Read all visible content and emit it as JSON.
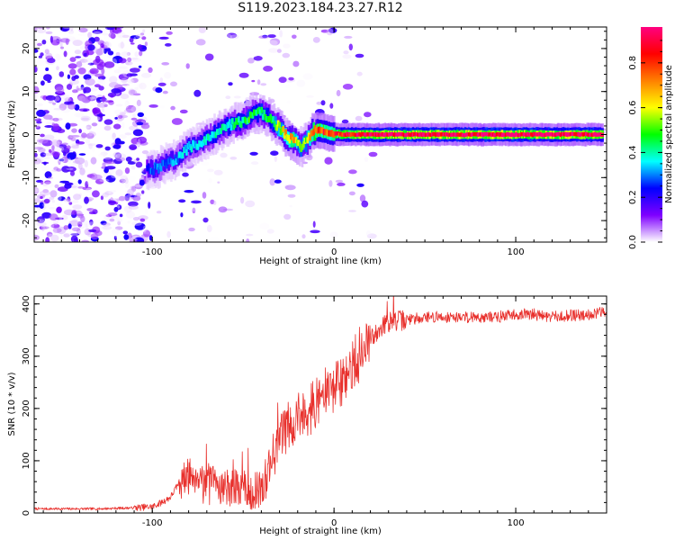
{
  "title": "S119.2023.184.23.27.R12",
  "chart_data": [
    {
      "type": "heatmap",
      "xlabel": "Height of straight line (km)",
      "ylabel": "Frequency (Hz)",
      "xlim": [
        -165,
        150
      ],
      "ylim": [
        -25,
        25
      ],
      "xticks": [
        -100,
        0,
        100
      ],
      "yticks": [
        -20,
        -10,
        0,
        10,
        20
      ],
      "colorbar": {
        "label": "Normalized spectral amplitude",
        "range": [
          0,
          0.96
        ],
        "ticks": [
          0.0,
          0.2,
          0.4,
          0.6,
          0.8
        ],
        "colors": [
          "#ffffff",
          "#7f00ff",
          "#0000ff",
          "#00ffff",
          "#00ff00",
          "#ffff00",
          "#ff8000",
          "#ff0000",
          "#ff0080"
        ]
      },
      "ridge": {
        "x": [
          -103,
          -98,
          -92,
          -86,
          -80,
          -74,
          -68,
          -62,
          -56,
          -50,
          -45,
          -40,
          -35,
          -30,
          -26,
          -22,
          -18,
          -15,
          -12,
          -9,
          -6,
          -3,
          0,
          5,
          10,
          20,
          40,
          60,
          80,
          100,
          120,
          140,
          148
        ],
        "y": [
          -8,
          -8,
          -6.5,
          -5.5,
          -3,
          -2,
          -0.5,
          1,
          2.5,
          3,
          5,
          5,
          3.5,
          1.5,
          -0.5,
          -1.5,
          -3,
          -1.5,
          0.5,
          1,
          0.8,
          0.3,
          0.2,
          0,
          0,
          0,
          0,
          0,
          0,
          0,
          0,
          0,
          0
        ],
        "amp": [
          0.25,
          0.3,
          0.3,
          0.32,
          0.35,
          0.35,
          0.38,
          0.38,
          0.4,
          0.45,
          0.45,
          0.45,
          0.45,
          0.55,
          0.65,
          0.7,
          0.5,
          0.55,
          0.7,
          0.85,
          0.8,
          0.75,
          0.8,
          0.85,
          0.9,
          0.95,
          0.95,
          0.95,
          0.95,
          0.95,
          0.95,
          0.95,
          0.95
        ]
      }
    },
    {
      "type": "line",
      "xlabel": "Height of straight line (km)",
      "ylabel": "SNR (10 * v/v)",
      "xlim": [
        -165,
        150
      ],
      "ylim": [
        0,
        415
      ],
      "xticks": [
        -100,
        0,
        100
      ],
      "yticks": [
        0,
        100,
        200,
        300,
        400
      ],
      "line_color": "#e8302c",
      "series": [
        {
          "x": [
            -165,
            -150,
            -130,
            -110,
            -100,
            -95,
            -90,
            -85,
            -80,
            -75,
            -70,
            -65,
            -60,
            -55,
            -50,
            -45,
            -40,
            -35,
            -30,
            -25,
            -20,
            -15,
            -10,
            -5,
            0,
            5,
            10,
            15,
            20,
            25,
            30,
            40,
            50,
            60,
            70,
            80,
            90,
            100,
            110,
            120,
            130,
            140,
            150
          ],
          "y": [
            8,
            8,
            8,
            10,
            12,
            20,
            30,
            60,
            70,
            75,
            60,
            55,
            50,
            45,
            48,
            40,
            45,
            100,
            140,
            170,
            180,
            200,
            210,
            230,
            240,
            250,
            280,
            300,
            330,
            355,
            365,
            370,
            375,
            375,
            375,
            375,
            375,
            380,
            380,
            375,
            378,
            380,
            385
          ]
        }
      ]
    }
  ]
}
